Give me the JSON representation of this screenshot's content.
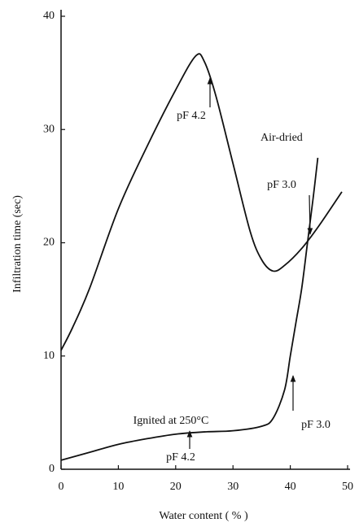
{
  "chart_data": {
    "type": "line",
    "xlabel": "Water content ( % )",
    "ylabel": "Infiltration time (sec)",
    "xlim": [
      0,
      50
    ],
    "ylim": [
      0,
      40
    ],
    "xticks": [
      0,
      10,
      20,
      30,
      40,
      50
    ],
    "yticks": [
      0,
      10,
      20,
      30,
      40
    ],
    "series": [
      {
        "name": "Air-dried",
        "color": "#111111",
        "x": [
          0,
          2,
          5,
          10,
          15,
          20,
          23.5,
          25,
          27,
          30,
          33,
          35,
          37,
          39,
          42,
          45,
          49
        ],
        "values": [
          10.5,
          12.5,
          16,
          23,
          28.5,
          33.5,
          36.5,
          36,
          33,
          27,
          21,
          18.5,
          17.5,
          18,
          19.5,
          21.5,
          24.5
        ]
      },
      {
        "name": "Ignited at 250°C",
        "color": "#111111",
        "x": [
          0,
          5,
          10,
          15,
          20,
          25,
          30,
          35,
          37,
          39,
          40,
          41,
          42,
          43,
          44,
          44.8
        ],
        "values": [
          0.8,
          1.5,
          2.2,
          2.7,
          3.1,
          3.3,
          3.4,
          3.8,
          4.5,
          7,
          10,
          13,
          16,
          20,
          24,
          27.5
        ]
      }
    ],
    "annotations": [
      "pF 4.2",
      "pF 3.0",
      "pF 3.0",
      "pF 4.2"
    ]
  }
}
